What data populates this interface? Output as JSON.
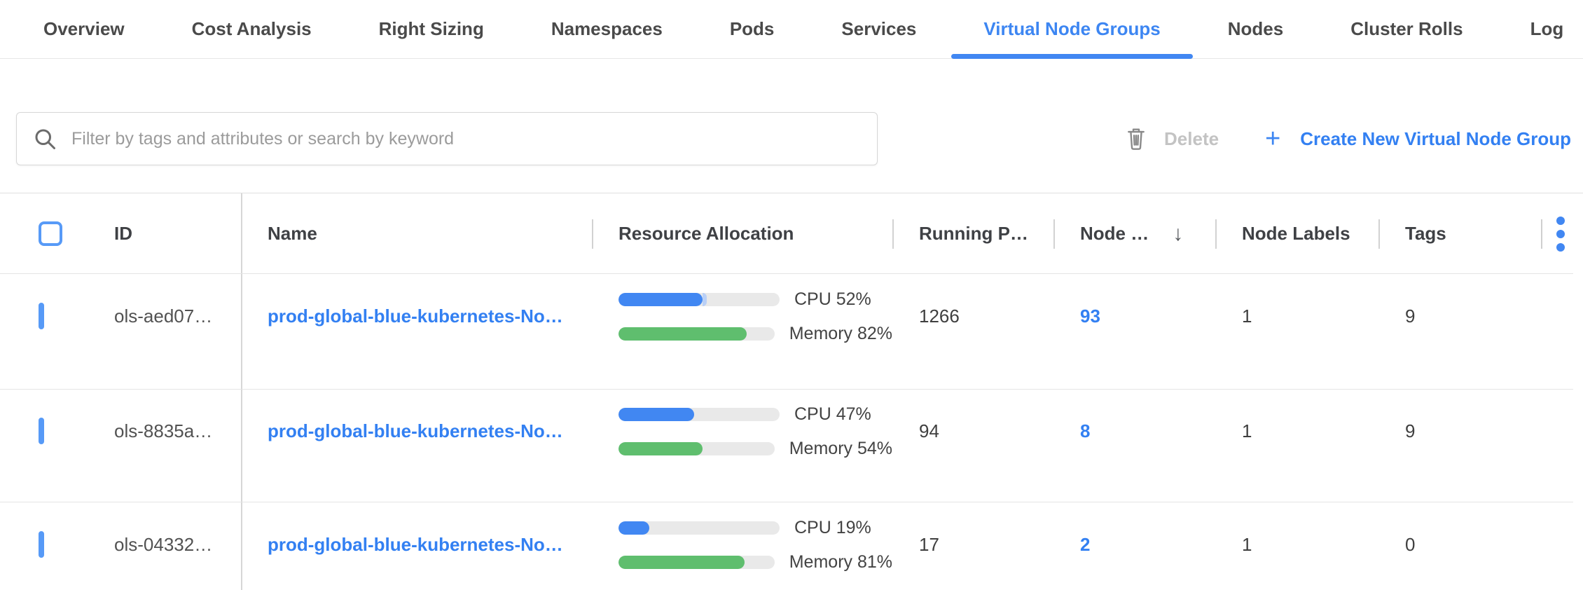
{
  "tabs": [
    {
      "label": "Overview",
      "active": false
    },
    {
      "label": "Cost Analysis",
      "active": false
    },
    {
      "label": "Right Sizing",
      "active": false
    },
    {
      "label": "Namespaces",
      "active": false
    },
    {
      "label": "Pods",
      "active": false
    },
    {
      "label": "Services",
      "active": false
    },
    {
      "label": "Virtual Node Groups",
      "active": true
    },
    {
      "label": "Nodes",
      "active": false
    },
    {
      "label": "Cluster Rolls",
      "active": false
    },
    {
      "label": "Log",
      "active": false
    }
  ],
  "toolbar": {
    "search_placeholder": "Filter by tags and attributes or search by keyword",
    "search_value": "",
    "delete_label": "Delete",
    "plus_glyph": "+",
    "create_label": "Create New Virtual Node Group"
  },
  "table": {
    "columns": {
      "id": "ID",
      "name": "Name",
      "resource": "Resource Allocation",
      "running_pods": "Running P…",
      "nodes": "Node …",
      "node_labels": "Node Labels",
      "tags": "Tags"
    },
    "sort": {
      "column": "nodes",
      "direction": "desc",
      "glyph": "↓"
    },
    "rows": [
      {
        "id": "ols-aed07…",
        "name": "prod-global-blue-kubernetes-No…",
        "cpu_pct": 52,
        "cpu_extra_pct": 3,
        "mem_pct": 82,
        "cpu_label": "CPU 52%",
        "mem_label": "Memory 82%",
        "running_pods": "1266",
        "nodes": "93",
        "node_labels": "1",
        "tags": "9"
      },
      {
        "id": "ols-8835a…",
        "name": "prod-global-blue-kubernetes-No…",
        "cpu_pct": 47,
        "cpu_extra_pct": 0,
        "mem_pct": 54,
        "cpu_label": "CPU 47%",
        "mem_label": "Memory 54%",
        "running_pods": "94",
        "nodes": "8",
        "node_labels": "1",
        "tags": "9"
      },
      {
        "id": "ols-04332…",
        "name": "prod-global-blue-kubernetes-No…",
        "cpu_pct": 19,
        "cpu_extra_pct": 0,
        "mem_pct": 81,
        "cpu_label": "CPU 19%",
        "mem_label": "Memory 81%",
        "running_pods": "17",
        "nodes": "2",
        "node_labels": "1",
        "tags": "0"
      }
    ]
  },
  "colors": {
    "accent_blue": "#3d86f2",
    "link_blue": "#3380f2",
    "bar_blue": "#4187f2",
    "bar_blue_light": "#b9d0f7",
    "bar_green": "#5fbe6e",
    "bar_track": "#e9e9e9",
    "disabled_gray": "#c3c3c3"
  }
}
